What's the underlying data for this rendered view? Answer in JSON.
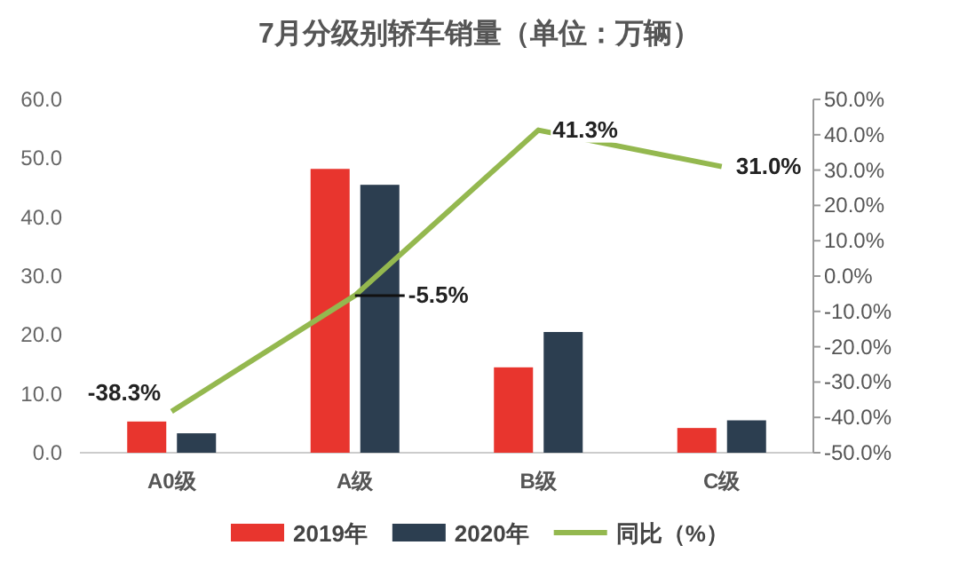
{
  "chart_data": {
    "type": "bar",
    "title": "7月分级别轿车销量（单位：万辆）",
    "categories": [
      "A0级",
      "A级",
      "B级",
      "C级"
    ],
    "series": [
      {
        "name": "2019年",
        "color": "#e8352e",
        "values": [
          5.3,
          48.2,
          14.5,
          4.2
        ]
      },
      {
        "name": "2020年",
        "color": "#2c3e50",
        "values": [
          3.3,
          45.5,
          20.5,
          5.5
        ]
      },
      {
        "name": "同比（%）",
        "type": "line",
        "axis": "y2",
        "color": "#94b84f",
        "values": [
          -38.3,
          -5.5,
          41.3,
          31.0
        ],
        "value_labels": [
          "-38.3%",
          "-5.5%",
          "41.3%",
          "31.0%"
        ]
      }
    ],
    "ylim": [
      0,
      60
    ],
    "yticks": [
      {
        "value": 0,
        "label": "0.0"
      },
      {
        "value": 10,
        "label": "10.0"
      },
      {
        "value": 20,
        "label": "20.0"
      },
      {
        "value": 30,
        "label": "30.0"
      },
      {
        "value": 40,
        "label": "40.0"
      },
      {
        "value": 50,
        "label": "50.0"
      },
      {
        "value": 60,
        "label": "60.0"
      }
    ],
    "y2lim": [
      -50,
      50
    ],
    "y2ticks": [
      {
        "value": -50,
        "label": "-50.0%"
      },
      {
        "value": -40,
        "label": "-40.0%"
      },
      {
        "value": -30,
        "label": "-30.0%"
      },
      {
        "value": -20,
        "label": "-20.0%"
      },
      {
        "value": -10,
        "label": "-10.0%"
      },
      {
        "value": 0,
        "label": "0.0%"
      },
      {
        "value": 10,
        "label": "10.0%"
      },
      {
        "value": 20,
        "label": "20.0%"
      },
      {
        "value": 30,
        "label": "30.0%"
      },
      {
        "value": 40,
        "label": "40.0%"
      },
      {
        "value": 50,
        "label": "50.0%"
      }
    ],
    "grid": false,
    "legend": "bottom",
    "marker": "none",
    "line_style": "solid"
  }
}
